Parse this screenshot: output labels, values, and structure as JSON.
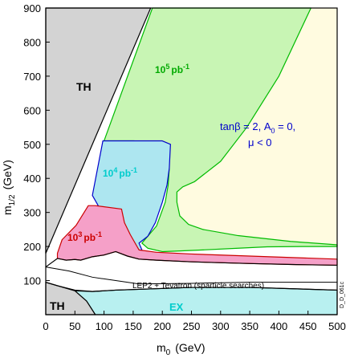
{
  "chart_data": {
    "type": "area",
    "xlabel_main": "m",
    "xlabel_sub": "0",
    "xlabel_unit": "(GeV)",
    "ylabel_main": "m",
    "ylabel_sub": "1/2",
    "ylabel_unit": "(GeV)",
    "xlim": [
      0,
      500
    ],
    "ylim": [
      0,
      900
    ],
    "x_ticks": [
      0,
      50,
      100,
      150,
      200,
      250,
      300,
      350,
      400,
      450,
      500
    ],
    "y_ticks": [
      100,
      200,
      300,
      400,
      500,
      600,
      700,
      800,
      900
    ],
    "grid": false,
    "regions": [
      {
        "name": "TH",
        "label": "TH",
        "fill": "#d3d3d3",
        "stroke": "#000000",
        "points": [
          [
            0,
            900
          ],
          [
            180,
            900
          ],
          [
            0,
            180
          ]
        ]
      },
      {
        "name": "TH-lower",
        "label": "TH",
        "fill": "#d3d3d3",
        "stroke": "#000000",
        "points": [
          [
            0,
            0
          ],
          [
            0,
            95
          ],
          [
            20,
            85
          ],
          [
            50,
            70
          ],
          [
            70,
            40
          ],
          [
            85,
            0
          ]
        ]
      },
      {
        "name": "sigma-1e5",
        "label_base": "10",
        "label_exp": "5",
        "label_unit": "pb",
        "label_unit_exp": "-1",
        "fill": "#c8f5b4",
        "stroke": "#00bb00",
        "points": [
          [
            183,
            900
          ],
          [
            455,
            900
          ],
          [
            400,
            700
          ],
          [
            345,
            550
          ],
          [
            300,
            450
          ],
          [
            255,
            390
          ],
          [
            235,
            375
          ],
          [
            225,
            360
          ],
          [
            225,
            330
          ],
          [
            230,
            290
          ],
          [
            245,
            265
          ],
          [
            270,
            250
          ],
          [
            330,
            232
          ],
          [
            420,
            215
          ],
          [
            500,
            205
          ],
          [
            500,
            200
          ],
          [
            440,
            200
          ],
          [
            380,
            199
          ],
          [
            330,
            195
          ],
          [
            270,
            190
          ],
          [
            230,
            187
          ],
          [
            200,
            185
          ],
          [
            175,
            195
          ],
          [
            165,
            210
          ],
          [
            190,
            260
          ],
          [
            205,
            330
          ],
          [
            210,
            380
          ],
          [
            212,
            430
          ],
          [
            212,
            490
          ],
          [
            205,
            505
          ],
          [
            150,
            510
          ],
          [
            100,
            510
          ]
        ]
      },
      {
        "name": "sigma-1e4",
        "label_base": "10",
        "label_exp": "4",
        "label_unit": "pb",
        "label_unit_exp": "-1",
        "fill": "#ade6f0",
        "stroke": "#0000cc",
        "points": [
          [
            98,
            510
          ],
          [
            200,
            510
          ],
          [
            214,
            500
          ],
          [
            212,
            430
          ],
          [
            208,
            380
          ],
          [
            200,
            330
          ],
          [
            188,
            270
          ],
          [
            175,
            230
          ],
          [
            160,
            210
          ],
          [
            165,
            190
          ],
          [
            150,
            185
          ],
          [
            140,
            195
          ],
          [
            130,
            220
          ],
          [
            115,
            250
          ],
          [
            90,
            320
          ],
          [
            80,
            350
          ],
          [
            98,
            510
          ]
        ]
      },
      {
        "name": "sigma-1e3",
        "label_base": "10",
        "label_exp": "3",
        "label_unit": "pb",
        "label_unit_exp": "-1",
        "fill": "#f5a0c8",
        "stroke": "#cc0000",
        "points": [
          [
            20,
            180
          ],
          [
            28,
            220
          ],
          [
            52,
            262
          ],
          [
            73,
            320
          ],
          [
            85,
            320
          ],
          [
            130,
            310
          ],
          [
            135,
            270
          ],
          [
            145,
            235
          ],
          [
            155,
            205
          ],
          [
            160,
            190
          ],
          [
            190,
            183
          ],
          [
            250,
            178
          ],
          [
            350,
            172
          ],
          [
            500,
            163
          ],
          [
            500,
            145
          ],
          [
            430,
            147
          ],
          [
            350,
            150
          ],
          [
            250,
            155
          ],
          [
            190,
            160
          ],
          [
            160,
            163
          ],
          [
            140,
            172
          ],
          [
            120,
            185
          ],
          [
            100,
            175
          ],
          [
            80,
            170
          ],
          [
            60,
            160
          ],
          [
            50,
            162
          ],
          [
            35,
            160
          ],
          [
            20,
            165
          ]
        ]
      },
      {
        "name": "tan-region",
        "fill": "#fffbe0",
        "points": [
          [
            180,
            900
          ],
          [
            500,
            900
          ],
          [
            500,
            205
          ],
          [
            420,
            215
          ],
          [
            330,
            232
          ],
          [
            270,
            250
          ],
          [
            245,
            265
          ],
          [
            230,
            290
          ],
          [
            225,
            330
          ],
          [
            225,
            360
          ],
          [
            235,
            375
          ],
          [
            255,
            390
          ],
          [
            300,
            450
          ],
          [
            345,
            550
          ],
          [
            400,
            700
          ],
          [
            455,
            900
          ]
        ]
      },
      {
        "name": "EX",
        "label": "EX",
        "fill": "#b8f0f0",
        "stroke": "#000000",
        "points": [
          [
            0,
            95
          ],
          [
            20,
            85
          ],
          [
            50,
            70
          ],
          [
            80,
            68
          ],
          [
            120,
            72
          ],
          [
            170,
            75
          ],
          [
            250,
            80
          ],
          [
            350,
            80
          ],
          [
            500,
            72
          ],
          [
            500,
            0
          ],
          [
            85,
            0
          ],
          [
            70,
            40
          ],
          [
            50,
            70
          ],
          [
            20,
            85
          ]
        ]
      }
    ],
    "labels": {
      "lep2": "LEP2 + Tevatron (sparticle searches)",
      "params_line1": "tanβ = 2, A",
      "params_line1_sub": "0",
      "params_line1_tail": " = 0,",
      "params_line2": "μ < 0",
      "code": "D_D_061c"
    }
  }
}
